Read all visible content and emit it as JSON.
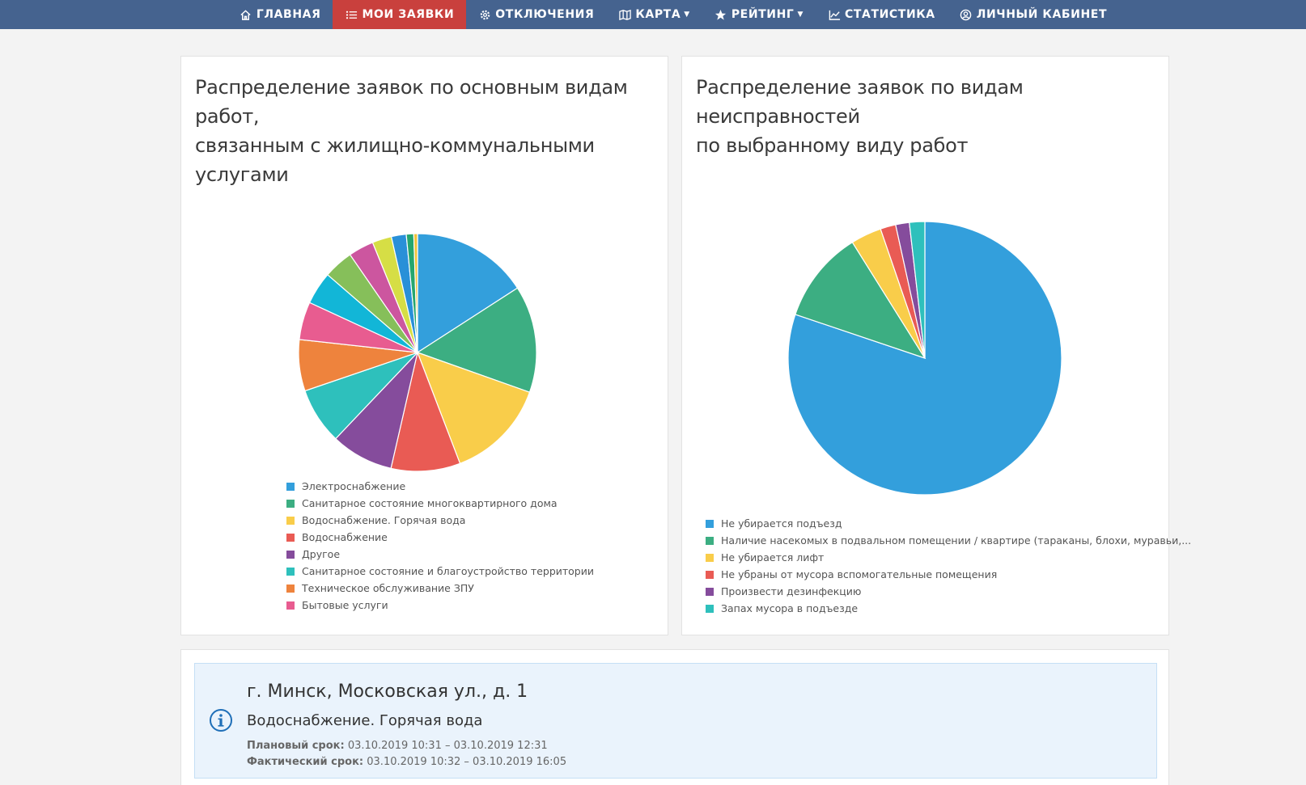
{
  "nav": {
    "items": [
      {
        "label": "ГЛАВНАЯ",
        "icon": "home-icon"
      },
      {
        "label": "МОИ ЗАЯВКИ",
        "icon": "list-icon",
        "active": true
      },
      {
        "label": "ОТКЛЮЧЕНИЯ",
        "icon": "gear-icon"
      },
      {
        "label": "КАРТА",
        "icon": "map-icon",
        "caret": "▼"
      },
      {
        "label": "РЕЙТИНГ",
        "icon": "star-icon",
        "caret": "▼"
      },
      {
        "label": "СТАТИСТИКА",
        "icon": "chart-line-icon"
      },
      {
        "label": "ЛИЧНЫЙ КАБИНЕТ",
        "icon": "user-circle-icon"
      }
    ],
    "colors": {
      "bar": "#45638f",
      "active": "#c9403d"
    }
  },
  "left_panel": {
    "title_line1": "Распределение заявок по основным видам работ,",
    "title_line2": "связанным с жилищно-коммунальными услугами"
  },
  "right_panel": {
    "title_line1": "Распределение заявок по видам неисправностей",
    "title_line2": "по выбранному виду работ"
  },
  "chart_data": [
    {
      "type": "pie",
      "title": "Распределение заявок по основным видам работ, связанным с жилищно-коммунальными услугами",
      "legend_position": "bottom",
      "slices": [
        {
          "label": "Электроснабжение",
          "value": 15.7,
          "color": "#339fdc",
          "in_legend": true
        },
        {
          "label": "Санитарное состояние многоквартирного дома",
          "value": 14.4,
          "color": "#3cae82",
          "in_legend": true
        },
        {
          "label": "Водоснабжение. Горячая вода",
          "value": 13.6,
          "color": "#f9cd4a",
          "in_legend": true
        },
        {
          "label": "Водоснабжение",
          "value": 9.3,
          "color": "#e95b54",
          "in_legend": true
        },
        {
          "label": "Другое",
          "value": 8.4,
          "color": "#854c9c",
          "in_legend": true
        },
        {
          "label": "Санитарное состояние и благоустройство территории",
          "value": 7.6,
          "color": "#2ec0bc",
          "in_legend": true
        },
        {
          "label": "Техническое обслуживание ЗПУ",
          "value": 6.9,
          "color": "#ee833d",
          "in_legend": true
        },
        {
          "label": "Бытовые услуги",
          "value": 5.1,
          "color": "#e85c90",
          "in_legend": true
        },
        {
          "label": "",
          "value": 4.4,
          "color": "#12b6d7",
          "in_legend": false
        },
        {
          "label": "",
          "value": 4.0,
          "color": "#86bf5a",
          "in_legend": false
        },
        {
          "label": "",
          "value": 3.4,
          "color": "#cc569f",
          "in_legend": false
        },
        {
          "label": "",
          "value": 2.6,
          "color": "#d6de45",
          "in_legend": false
        },
        {
          "label": "",
          "value": 2.0,
          "color": "#2990d8",
          "in_legend": false
        },
        {
          "label": "",
          "value": 1.0,
          "color": "#25a66e",
          "in_legend": false
        },
        {
          "label": "",
          "value": 0.5,
          "color": "#f0c239",
          "in_legend": false
        }
      ]
    },
    {
      "type": "pie",
      "title": "Распределение заявок по видам неисправностей по выбранному виду работ",
      "legend_position": "bottom",
      "slices": [
        {
          "label": "Не убирается подъезд",
          "value": 79.3,
          "color": "#339fdc",
          "in_legend": true
        },
        {
          "label": "Наличие насекомых в подвальном помещении / квартире (тараканы, блохи, муравьи,...",
          "value": 10.8,
          "color": "#3cae82",
          "in_legend": true
        },
        {
          "label": "Не убирается лифт",
          "value": 3.6,
          "color": "#f9cd4a",
          "in_legend": true
        },
        {
          "label": "Не убраны от мусора вспомогательные помещения",
          "value": 1.8,
          "color": "#e95b54",
          "in_legend": true
        },
        {
          "label": "Произвести дезинфекцию",
          "value": 1.6,
          "color": "#854c9c",
          "in_legend": true
        },
        {
          "label": "Запах мусора в подъезде",
          "value": 1.8,
          "color": "#2ec0bc",
          "in_legend": true
        }
      ]
    }
  ],
  "info_card": {
    "icon": "info-circle-icon",
    "address": "г. Минск, Московская ул., д. 1",
    "category": "Водоснабжение. Горячая вода",
    "plan_label": "Плановый срок:",
    "plan_value": "03.10.2019 10:31 – 03.10.2019 12:31",
    "fact_label": "Фактический срок:",
    "fact_value": "03.10.2019 10:32 – 03.10.2019 16:05"
  }
}
